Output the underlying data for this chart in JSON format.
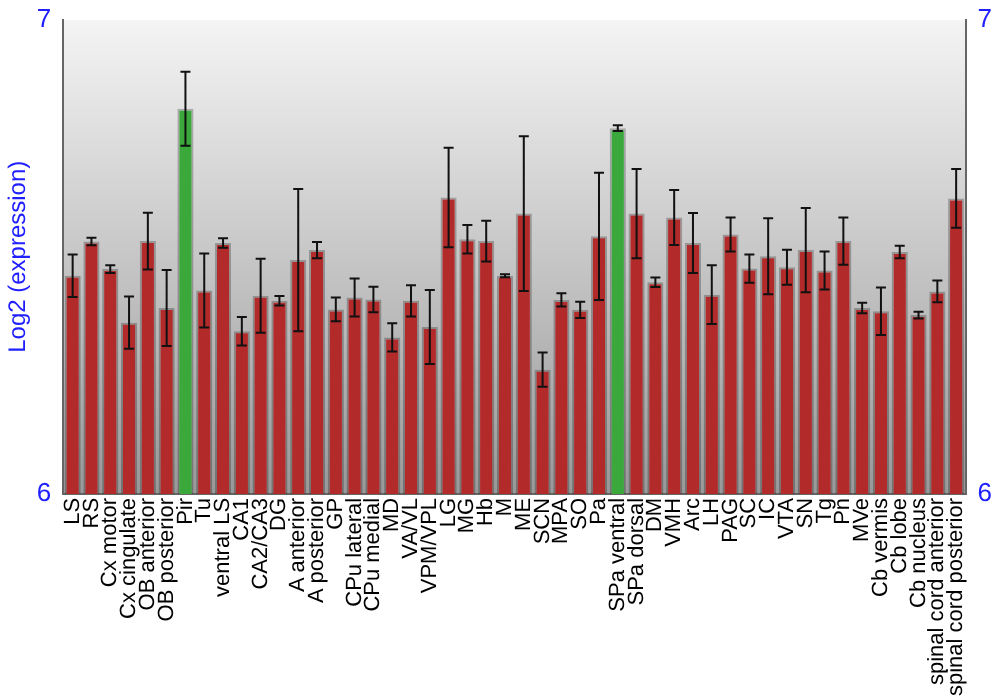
{
  "chart_data": {
    "type": "bar",
    "ylabel": "Log2 (expression)",
    "categories": [
      "LS",
      "RS",
      "Cx motor",
      "Cx cingulate",
      "OB anterior",
      "OB posterior",
      "Pir",
      "Tu",
      "ventral LS",
      "CA1",
      "CA2/CA3",
      "DG",
      "A anterior",
      "A posterior",
      "GP",
      "CPu lateral",
      "CPu medial",
      "MD",
      "VA/VL",
      "VPM/VPL",
      "LG",
      "MG",
      "Hb",
      "M",
      "ME",
      "SCN",
      "MPA",
      "SO",
      "Pa",
      "SPa ventral",
      "SPa dorsal",
      "DM",
      "VMH",
      "Arc",
      "LH",
      "PAG",
      "SC",
      "IC",
      "VTA",
      "SN",
      "Tg",
      "Pn",
      "MVe",
      "Cb vermis",
      "Cb lobe",
      "Cb nucleus",
      "spinal cord anterior",
      "spinal cord posterior"
    ],
    "values": [
      6.46,
      6.532,
      6.474,
      6.361,
      6.533,
      6.392,
      6.812,
      6.429,
      6.529,
      6.343,
      6.418,
      6.407,
      6.493,
      6.514,
      6.389,
      6.414,
      6.41,
      6.33,
      6.407,
      6.352,
      6.625,
      6.537,
      6.533,
      6.46,
      6.591,
      6.262,
      6.409,
      6.388,
      6.543,
      6.771,
      6.591,
      6.446,
      6.583,
      6.529,
      6.42,
      6.547,
      6.475,
      6.501,
      6.478,
      6.514,
      6.471,
      6.533,
      6.392,
      6.385,
      6.51,
      6.377,
      6.427,
      6.623
    ],
    "errors": [
      0.045,
      0.008,
      0.008,
      0.055,
      0.06,
      0.08,
      0.078,
      0.078,
      0.01,
      0.03,
      0.078,
      0.01,
      0.15,
      0.017,
      0.025,
      0.04,
      0.027,
      0.03,
      0.033,
      0.078,
      0.105,
      0.03,
      0.043,
      0.003,
      0.163,
      0.036,
      0.014,
      0.017,
      0.134,
      0.006,
      0.094,
      0.01,
      0.058,
      0.063,
      0.062,
      0.036,
      0.03,
      0.08,
      0.037,
      0.089,
      0.04,
      0.05,
      0.011,
      0.05,
      0.013,
      0.007,
      0.023,
      0.062
    ],
    "colors": [
      "#b22a2a",
      "#b22a2a",
      "#b22a2a",
      "#b22a2a",
      "#b22a2a",
      "#b22a2a",
      "#3aa83a",
      "#b22a2a",
      "#b22a2a",
      "#b22a2a",
      "#b22a2a",
      "#b22a2a",
      "#b22a2a",
      "#b22a2a",
      "#b22a2a",
      "#b22a2a",
      "#b22a2a",
      "#b22a2a",
      "#b22a2a",
      "#b22a2a",
      "#b22a2a",
      "#b22a2a",
      "#b22a2a",
      "#b22a2a",
      "#b22a2a",
      "#b22a2a",
      "#b22a2a",
      "#b22a2a",
      "#b22a2a",
      "#3aa83a",
      "#b22a2a",
      "#b22a2a",
      "#b22a2a",
      "#b22a2a",
      "#b22a2a",
      "#b22a2a",
      "#b22a2a",
      "#b22a2a",
      "#b22a2a",
      "#b22a2a",
      "#b22a2a",
      "#b22a2a",
      "#b22a2a",
      "#b22a2a",
      "#b22a2a",
      "#b22a2a",
      "#b22a2a",
      "#b22a2a"
    ],
    "ylim": [
      6,
      7
    ],
    "yticks": [
      6,
      7
    ],
    "y2lim": [
      6,
      7
    ],
    "y2ticks": [
      6,
      7
    ],
    "grid": false,
    "legend": false
  }
}
